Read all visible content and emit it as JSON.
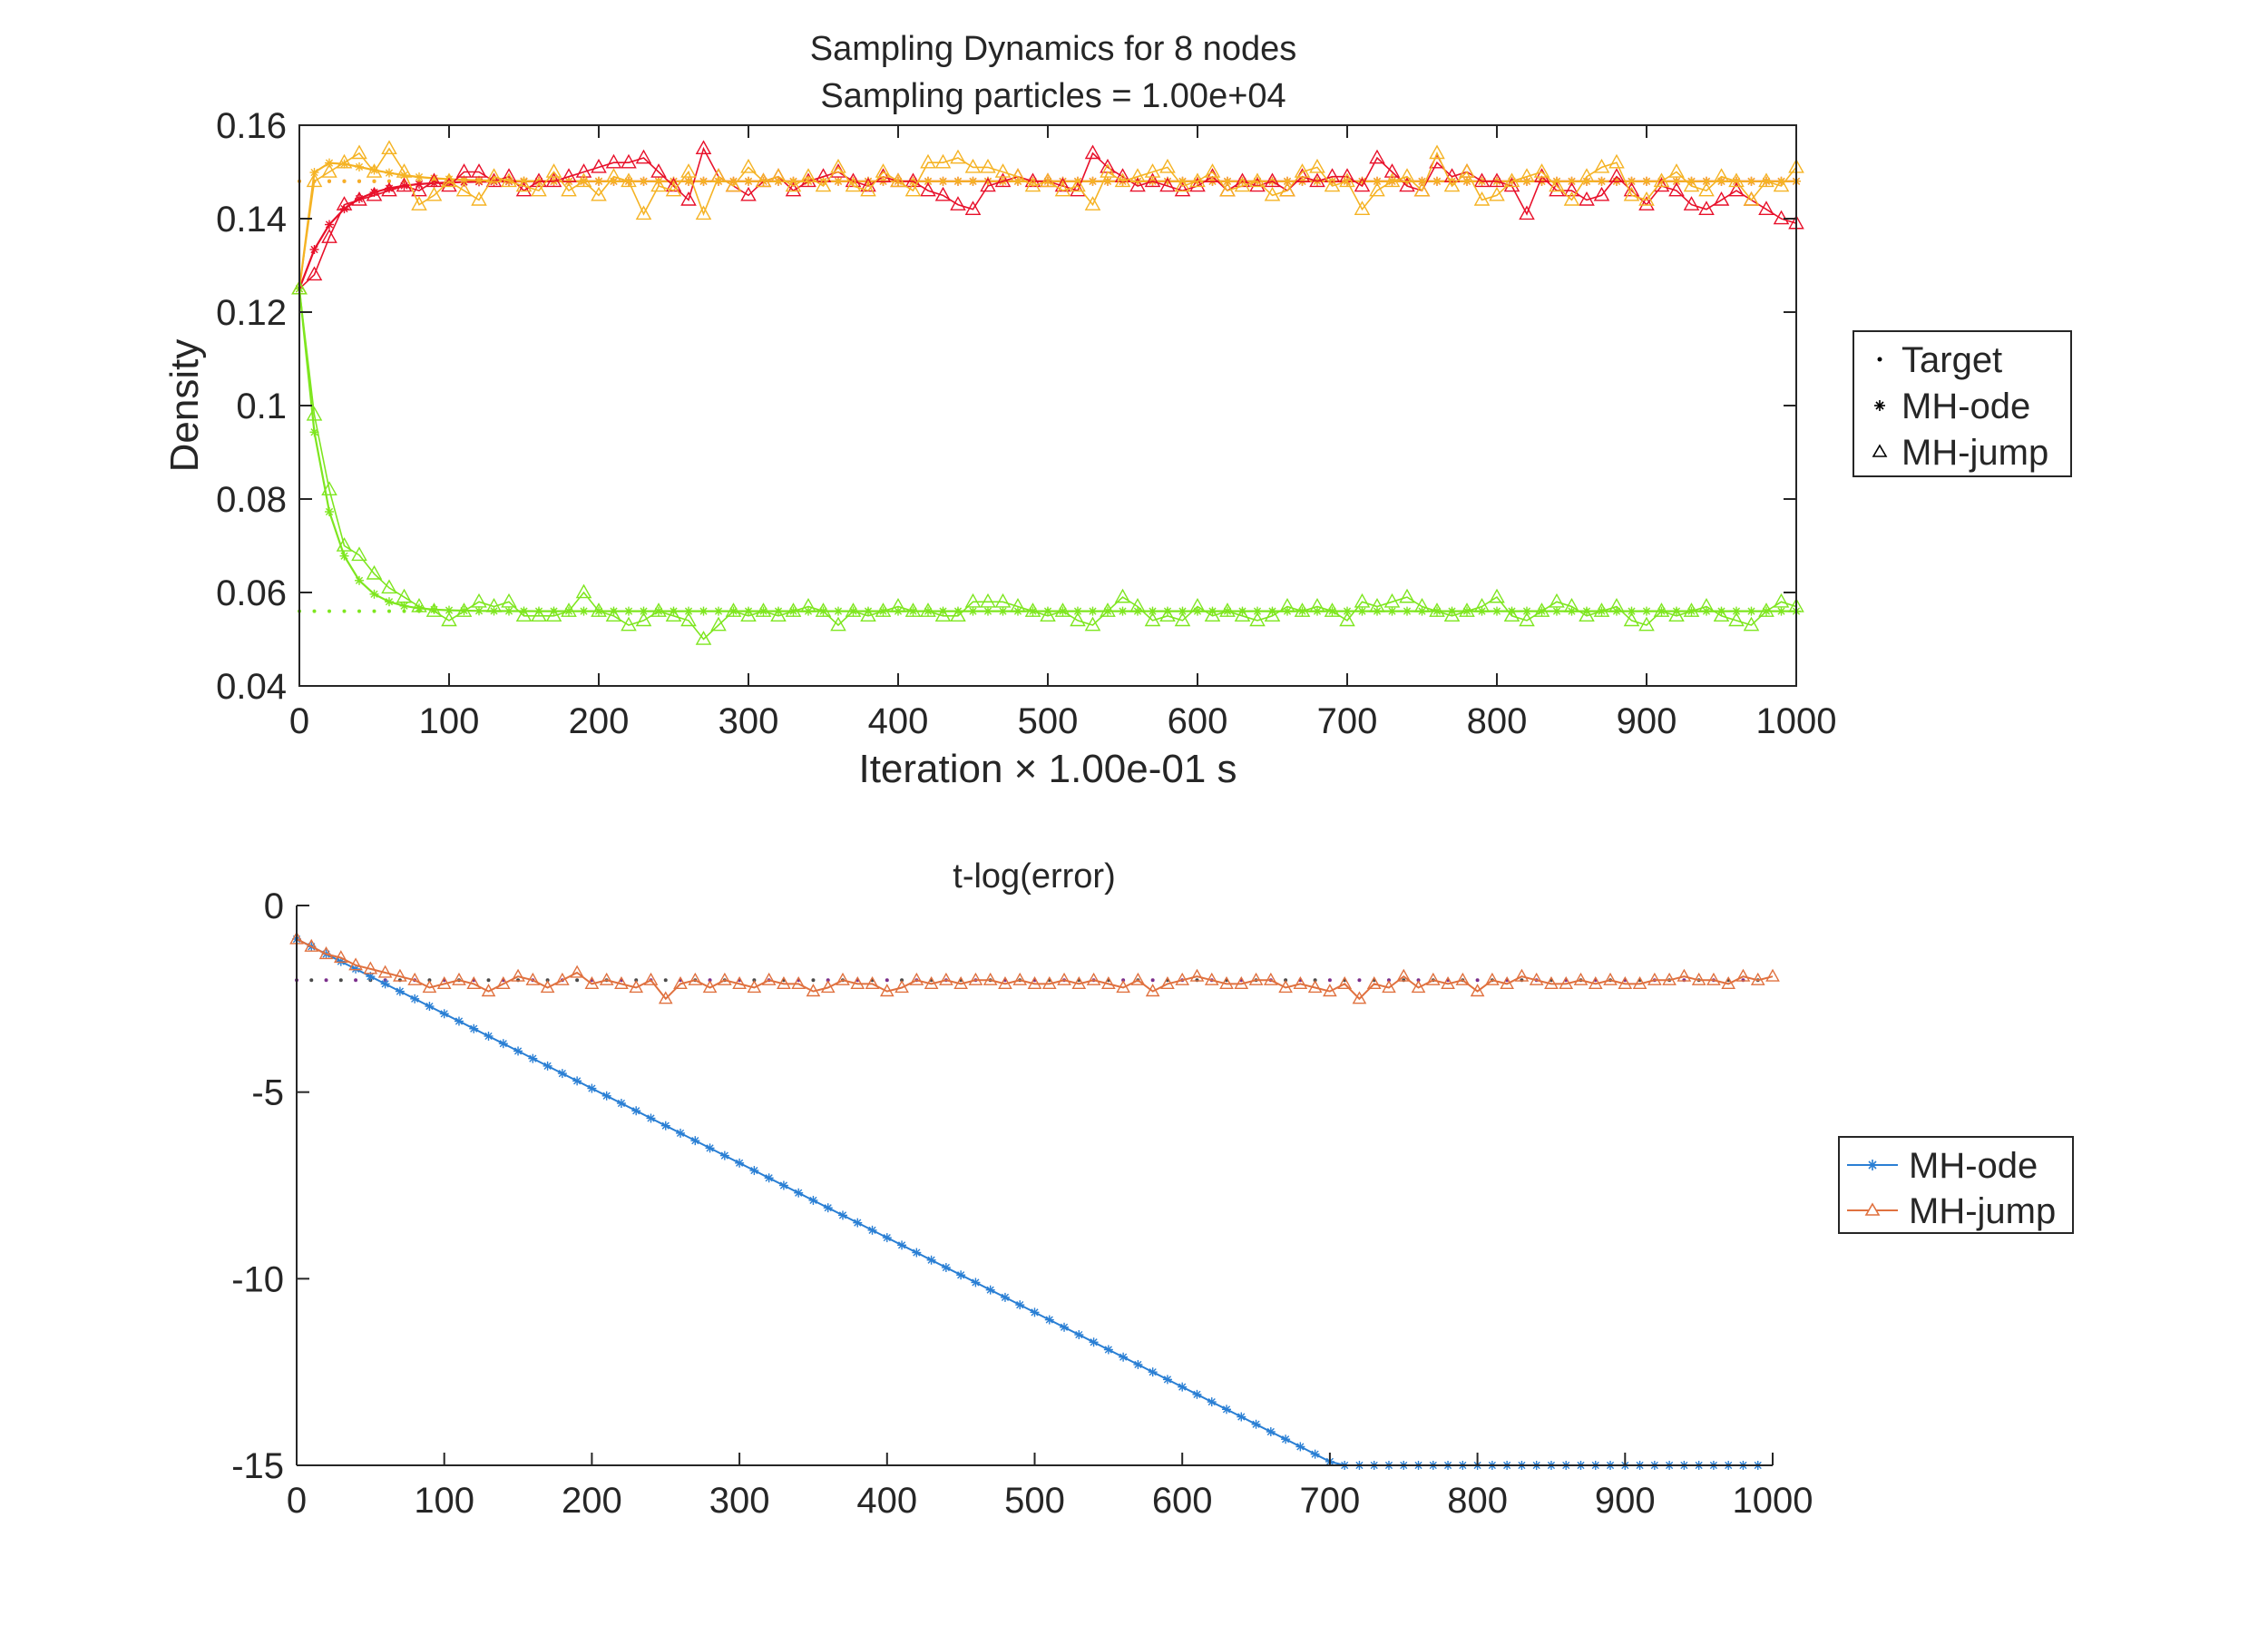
{
  "chart_data": [
    {
      "type": "line",
      "title": [
        "Sampling Dynamics for 8 nodes",
        "Sampling particles = 1.00e+04"
      ],
      "xlabel": "Iteration × 1.00e-01 s",
      "ylabel": "Density",
      "xlim": [
        0,
        1000
      ],
      "ylim": [
        0.04,
        0.16
      ],
      "xticks": [
        "0",
        "100",
        "200",
        "300",
        "400",
        "500",
        "600",
        "700",
        "800",
        "900",
        "1000"
      ],
      "yticks": [
        "0.04",
        "0.06",
        "0.08",
        "0.1",
        "0.12",
        "0.14",
        "0.16"
      ],
      "grid": false,
      "legend_position": "right",
      "legend": [
        {
          "label": "Target",
          "marker": "dot"
        },
        {
          "label": "MH-ode",
          "marker": "asterisk"
        },
        {
          "label": "MH-jump",
          "marker": "triangle"
        }
      ],
      "colors": {
        "red": "#e8102a",
        "orange": "#f5b324",
        "green": "#7ee61f"
      },
      "x_step": 10,
      "targets": [
        {
          "color": "red",
          "value": 0.148
        },
        {
          "color": "orange",
          "value": 0.148
        },
        {
          "color": "green",
          "value": 0.056
        }
      ],
      "series": [
        {
          "color": "red",
          "kind": "MH-ode",
          "start": 0.125,
          "target": 0.148,
          "tau": 22
        },
        {
          "color": "orange",
          "kind": "MH-ode",
          "start": 0.125,
          "target": 0.148,
          "tau": 3.5,
          "overshoot": 0.004
        },
        {
          "color": "green",
          "kind": "MH-ode",
          "start": 0.125,
          "target": 0.056,
          "tau": 17
        },
        {
          "color": "red",
          "kind": "MH-jump",
          "values": [
            0.125,
            0.128,
            0.136,
            0.143,
            0.144,
            0.145,
            0.146,
            0.147,
            0.146,
            0.148,
            0.147,
            0.15,
            0.15,
            0.148,
            0.149,
            0.146,
            0.148,
            0.148,
            0.149,
            0.15,
            0.151,
            0.152,
            0.152,
            0.153,
            0.15,
            0.147,
            0.144,
            0.155,
            0.149,
            0.147,
            0.145,
            0.148,
            0.149,
            0.146,
            0.148,
            0.149,
            0.15,
            0.148,
            0.147,
            0.149,
            0.148,
            0.148,
            0.146,
            0.145,
            0.143,
            0.142,
            0.147,
            0.148,
            0.149,
            0.148,
            0.148,
            0.147,
            0.146,
            0.154,
            0.151,
            0.149,
            0.147,
            0.148,
            0.147,
            0.146,
            0.147,
            0.149,
            0.146,
            0.148,
            0.147,
            0.148,
            0.146,
            0.149,
            0.148,
            0.149,
            0.149,
            0.147,
            0.153,
            0.15,
            0.147,
            0.146,
            0.152,
            0.149,
            0.15,
            0.148,
            0.148,
            0.147,
            0.141,
            0.149,
            0.146,
            0.146,
            0.144,
            0.145,
            0.149,
            0.146,
            0.143,
            0.147,
            0.146,
            0.143,
            0.142,
            0.144,
            0.146,
            0.144,
            0.142,
            0.14,
            0.139
          ]
        },
        {
          "color": "orange",
          "kind": "MH-jump",
          "values": [
            0.125,
            0.148,
            0.15,
            0.152,
            0.154,
            0.15,
            0.155,
            0.15,
            0.143,
            0.145,
            0.148,
            0.146,
            0.144,
            0.149,
            0.148,
            0.147,
            0.146,
            0.15,
            0.146,
            0.148,
            0.145,
            0.149,
            0.148,
            0.141,
            0.147,
            0.146,
            0.15,
            0.141,
            0.149,
            0.147,
            0.151,
            0.148,
            0.149,
            0.147,
            0.149,
            0.147,
            0.151,
            0.147,
            0.146,
            0.15,
            0.148,
            0.146,
            0.152,
            0.152,
            0.153,
            0.151,
            0.151,
            0.15,
            0.149,
            0.147,
            0.148,
            0.146,
            0.147,
            0.143,
            0.15,
            0.148,
            0.149,
            0.15,
            0.151,
            0.147,
            0.148,
            0.15,
            0.146,
            0.147,
            0.148,
            0.145,
            0.146,
            0.15,
            0.151,
            0.147,
            0.148,
            0.142,
            0.146,
            0.148,
            0.149,
            0.146,
            0.154,
            0.147,
            0.15,
            0.144,
            0.145,
            0.148,
            0.149,
            0.15,
            0.147,
            0.144,
            0.149,
            0.151,
            0.152,
            0.145,
            0.144,
            0.148,
            0.15,
            0.147,
            0.146,
            0.149,
            0.148,
            0.144,
            0.148,
            0.147,
            0.151
          ]
        },
        {
          "color": "green",
          "kind": "MH-jump",
          "values": [
            0.125,
            0.098,
            0.082,
            0.07,
            0.068,
            0.064,
            0.061,
            0.059,
            0.057,
            0.056,
            0.054,
            0.056,
            0.058,
            0.057,
            0.058,
            0.055,
            0.055,
            0.055,
            0.056,
            0.06,
            0.056,
            0.055,
            0.053,
            0.054,
            0.056,
            0.055,
            0.054,
            0.05,
            0.053,
            0.056,
            0.055,
            0.056,
            0.055,
            0.056,
            0.057,
            0.056,
            0.053,
            0.056,
            0.055,
            0.056,
            0.057,
            0.056,
            0.056,
            0.055,
            0.055,
            0.058,
            0.058,
            0.058,
            0.057,
            0.056,
            0.055,
            0.056,
            0.054,
            0.053,
            0.056,
            0.059,
            0.057,
            0.054,
            0.055,
            0.054,
            0.057,
            0.055,
            0.056,
            0.055,
            0.054,
            0.055,
            0.057,
            0.056,
            0.057,
            0.056,
            0.054,
            0.058,
            0.057,
            0.058,
            0.059,
            0.057,
            0.056,
            0.055,
            0.056,
            0.057,
            0.059,
            0.055,
            0.054,
            0.056,
            0.058,
            0.057,
            0.055,
            0.056,
            0.057,
            0.054,
            0.053,
            0.056,
            0.055,
            0.056,
            0.057,
            0.055,
            0.054,
            0.053,
            0.056,
            0.058,
            0.057
          ]
        }
      ]
    },
    {
      "type": "line",
      "title": "t-log(error)",
      "xlim": [
        0,
        1000
      ],
      "ylim": [
        -15,
        0
      ],
      "xticks": [
        "0",
        "100",
        "200",
        "300",
        "400",
        "500",
        "600",
        "700",
        "800",
        "900",
        "1000"
      ],
      "yticks": [
        "-15",
        "-10",
        "-5",
        "0"
      ],
      "grid": false,
      "legend_position": "right",
      "legend": [
        {
          "label": "MH-ode",
          "marker": "asterisk",
          "color": "#2a7fd4"
        },
        {
          "label": "MH-jump",
          "marker": "triangle",
          "color": "#e0713f"
        }
      ],
      "x_step": 10,
      "reference_line": {
        "value": -2.0
      },
      "series": [
        {
          "name": "MH-ode",
          "color": "#2a7fd4",
          "start": -0.9,
          "slope_per_unit": -0.02,
          "floor": -15.0
        },
        {
          "name": "MH-jump",
          "color": "#e0713f",
          "values": [
            -0.9,
            -1.1,
            -1.3,
            -1.4,
            -1.6,
            -1.7,
            -1.8,
            -1.9,
            -2.0,
            -2.2,
            -2.1,
            -2.0,
            -2.1,
            -2.3,
            -2.1,
            -1.9,
            -2.0,
            -2.2,
            -2.0,
            -1.8,
            -2.1,
            -2.0,
            -2.1,
            -2.2,
            -2.0,
            -2.5,
            -2.1,
            -2.0,
            -2.2,
            -2.0,
            -2.1,
            -2.2,
            -2.0,
            -2.1,
            -2.1,
            -2.3,
            -2.2,
            -2.0,
            -2.1,
            -2.1,
            -2.3,
            -2.2,
            -2.0,
            -2.1,
            -2.0,
            -2.1,
            -2.0,
            -2.0,
            -2.1,
            -2.0,
            -2.1,
            -2.1,
            -2.0,
            -2.1,
            -2.0,
            -2.1,
            -2.2,
            -2.0,
            -2.3,
            -2.1,
            -2.0,
            -1.9,
            -2.0,
            -2.1,
            -2.1,
            -2.0,
            -2.0,
            -2.2,
            -2.1,
            -2.2,
            -2.3,
            -2.1,
            -2.5,
            -2.1,
            -2.2,
            -1.9,
            -2.2,
            -2.0,
            -2.1,
            -2.0,
            -2.3,
            -2.0,
            -2.1,
            -1.9,
            -2.0,
            -2.1,
            -2.1,
            -2.0,
            -2.1,
            -2.0,
            -2.1,
            -2.1,
            -2.0,
            -2.0,
            -1.9,
            -2.0,
            -2.0,
            -2.1,
            -1.9,
            -2.0,
            -1.9
          ]
        }
      ]
    }
  ]
}
